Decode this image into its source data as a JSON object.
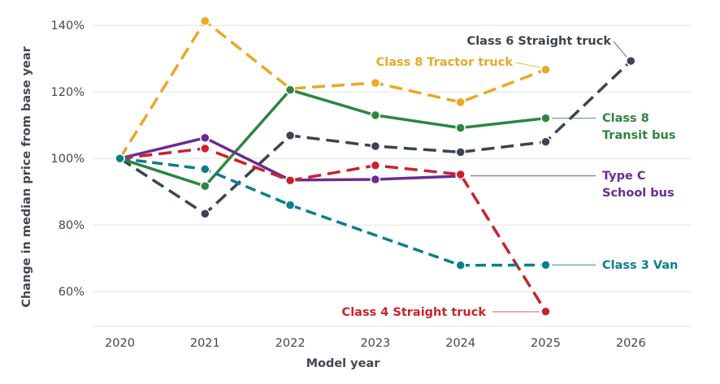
{
  "chart_data": {
    "type": "line",
    "title": "",
    "xlabel": "Model year",
    "ylabel": "Change in median price from base year",
    "x": [
      2020,
      2021,
      2022,
      2023,
      2024,
      2025,
      2026
    ],
    "x_tick_labels": [
      "2020",
      "2021",
      "2022",
      "2023",
      "2024",
      "2025",
      "2026"
    ],
    "ylim": [
      50,
      144
    ],
    "y_ticks": [
      60,
      80,
      100,
      120,
      140
    ],
    "y_tick_labels": [
      "60%",
      "80%",
      "100%",
      "120%",
      "140%"
    ],
    "grid": "horizontal",
    "legend": "direct labels at right end of each series",
    "series": [
      {
        "name": "Class 8 Tractor truck",
        "label_lines": [
          "Class 8 Tractor truck"
        ],
        "color": "#e9a825",
        "style": "dashed",
        "values": [
          100,
          141.3,
          121.0,
          122.7,
          116.9,
          126.7,
          null
        ]
      },
      {
        "name": "Class 6 Straight truck",
        "label_lines": [
          "Class 6 Straight truck"
        ],
        "color": "#3b4450",
        "style": "dashed",
        "values": [
          100,
          83.4,
          106.9,
          103.7,
          101.9,
          105.0,
          129.3
        ]
      },
      {
        "name": "Class 8 Transit bus",
        "label_lines": [
          "Class 8",
          "Transit bus"
        ],
        "color": "#2e8540",
        "style": "solid",
        "values": [
          100,
          91.7,
          120.6,
          113.0,
          109.2,
          112.1,
          null
        ]
      },
      {
        "name": "Type C School bus",
        "label_lines": [
          "Type C",
          "School bus"
        ],
        "color": "#6a2c91",
        "style": "solid",
        "values": [
          100,
          106.2,
          93.5,
          93.7,
          94.7,
          null,
          null
        ]
      },
      {
        "name": "Class 4 Straight truck",
        "label_lines": [
          "Class 4 Straight truck"
        ],
        "color": "#c8232c",
        "style": "dashed",
        "values": [
          100,
          103.0,
          93.4,
          97.9,
          95.2,
          54.0,
          null
        ]
      },
      {
        "name": "Class 3 Van",
        "label_lines": [
          "Class 3 Van"
        ],
        "color": "#0a7f8c",
        "style": "dashed",
        "values": [
          100,
          96.8,
          86.0,
          null,
          67.9,
          68.0,
          null
        ]
      }
    ]
  }
}
